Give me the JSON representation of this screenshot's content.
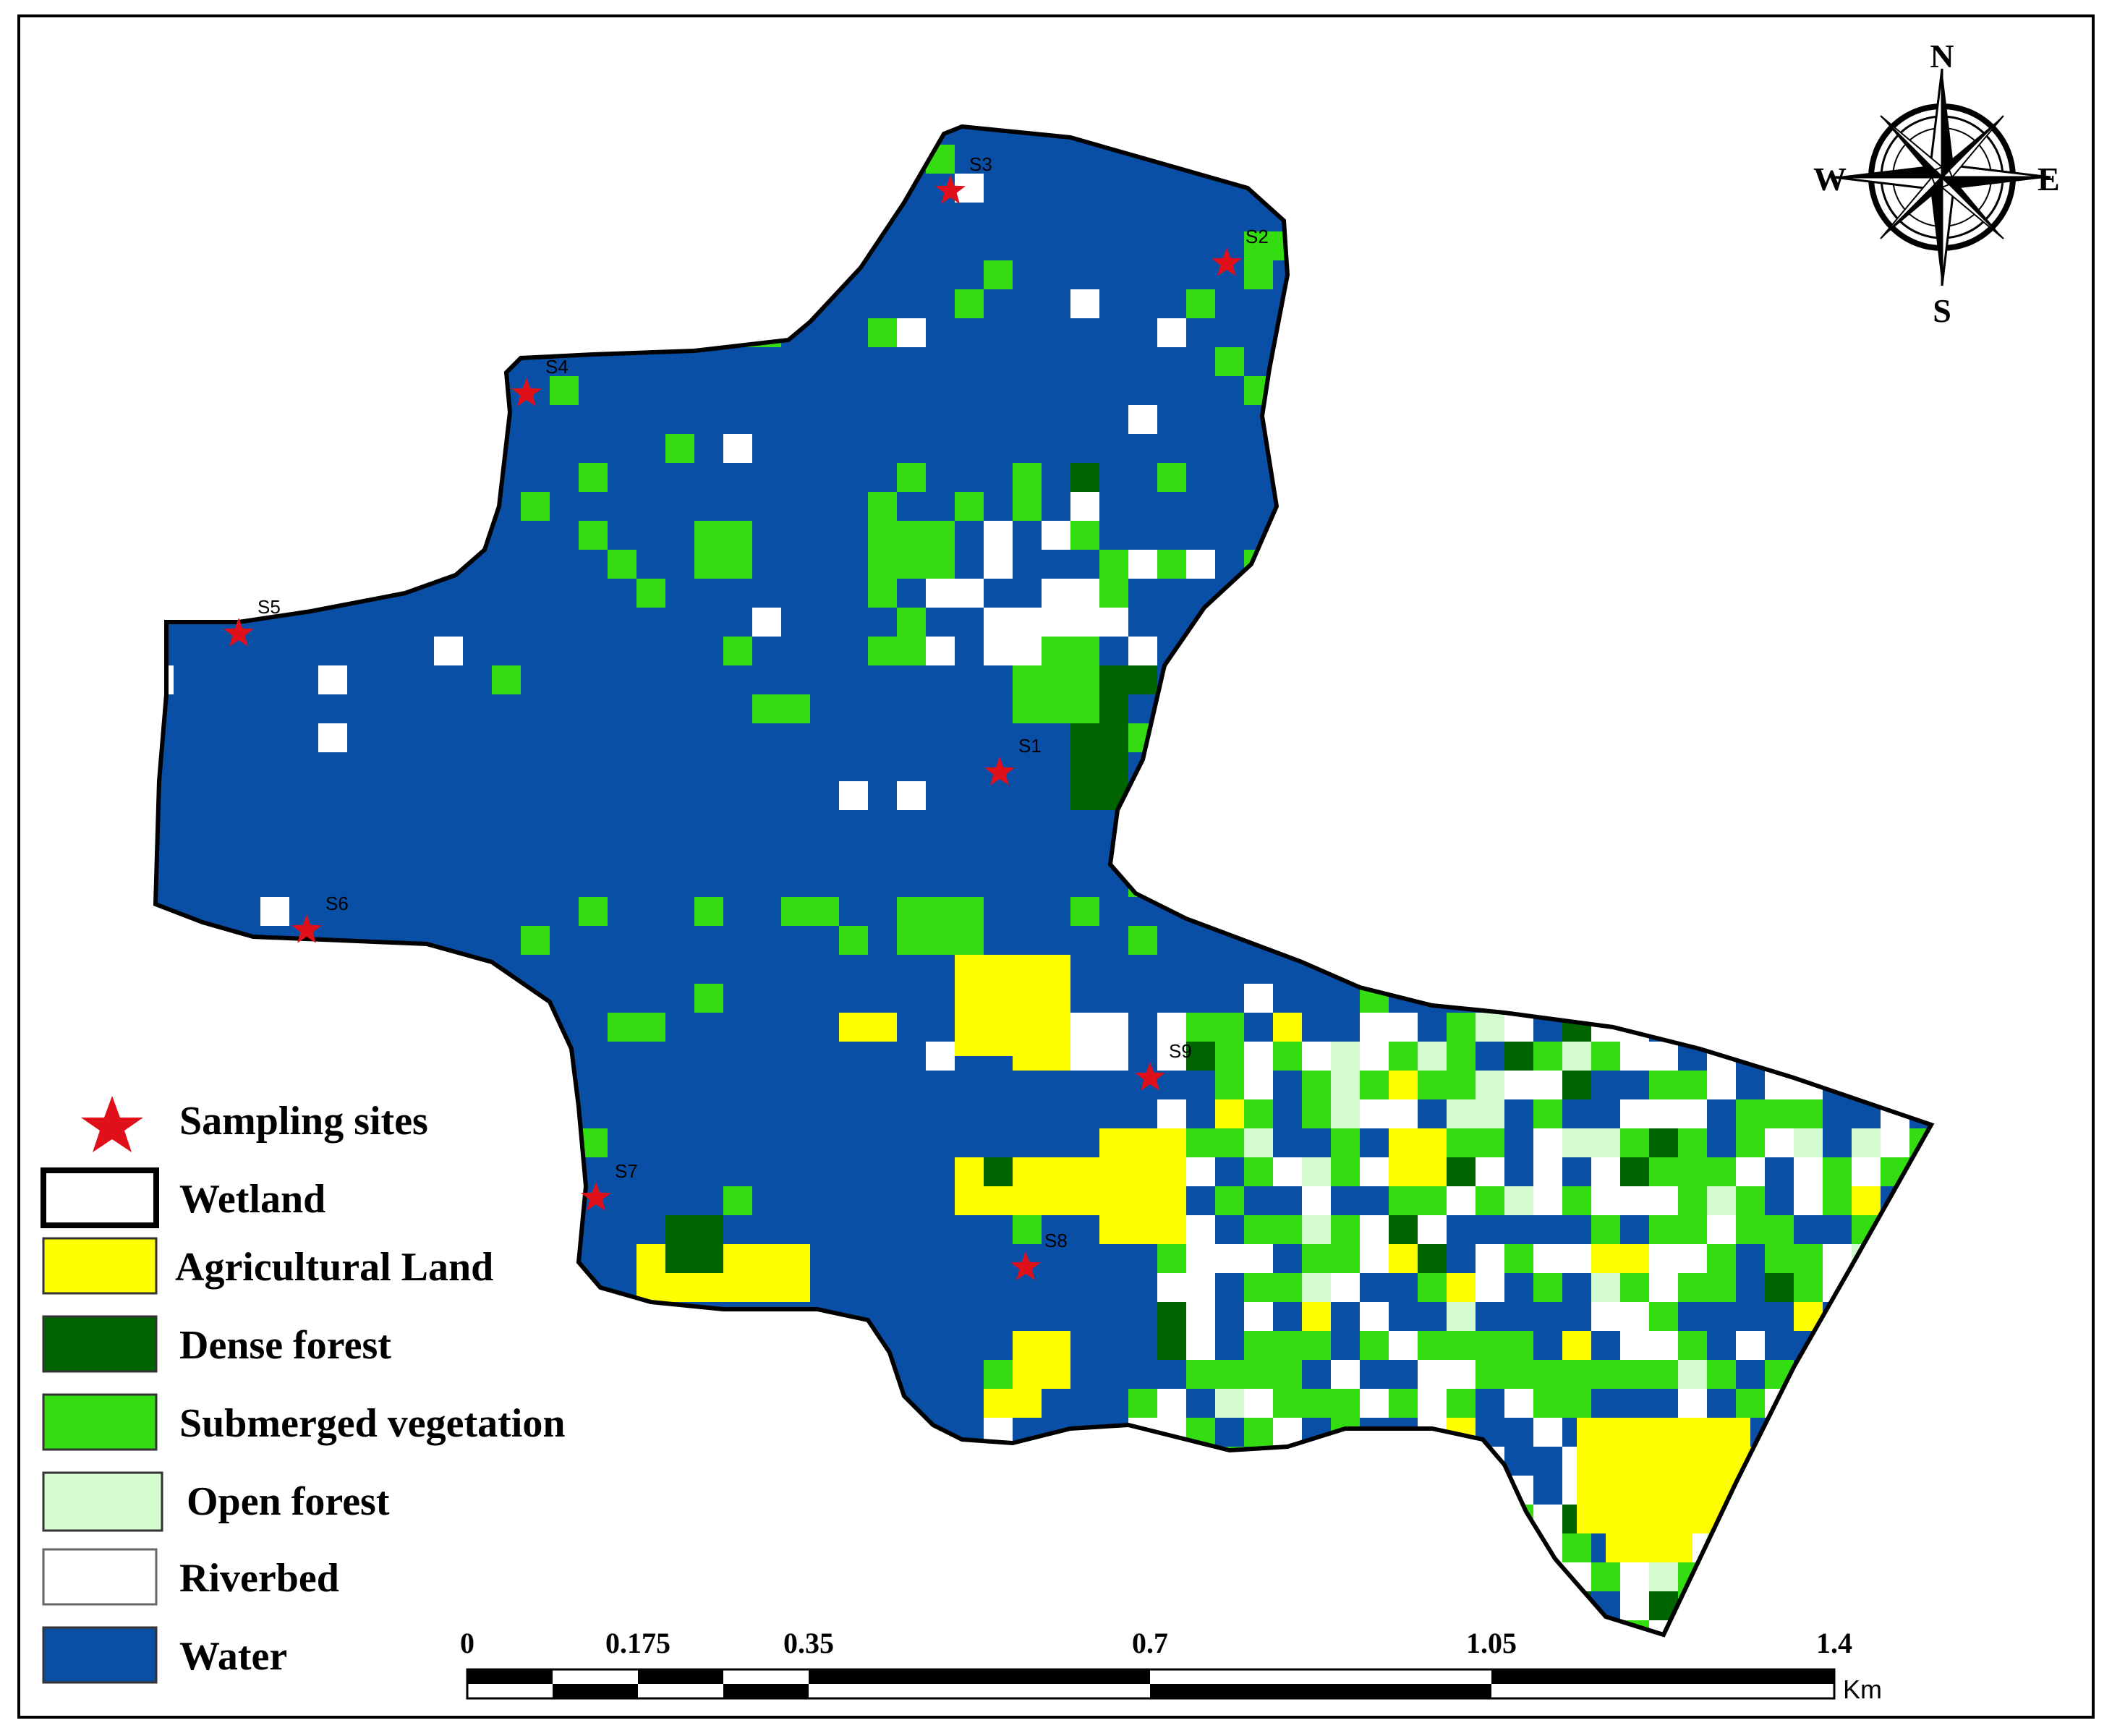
{
  "legend": {
    "items": [
      {
        "key": "sampling",
        "label": "Sampling sites"
      },
      {
        "key": "wetland",
        "label": "Wetland",
        "color": "#ffffff",
        "border": "#000000"
      },
      {
        "key": "agri",
        "label": "Agricultural Land",
        "color": "#ffff00"
      },
      {
        "key": "dense",
        "label": "Dense forest",
        "color": "#006400"
      },
      {
        "key": "submerged",
        "label": "Submerged vegetation",
        "color": "#33dd11"
      },
      {
        "key": "open",
        "label": "Open forest",
        "color": "#d4fbd0"
      },
      {
        "key": "riverbed",
        "label": "Riverbed",
        "color": "#ffffff"
      },
      {
        "key": "water",
        "label": "Water",
        "color": "#0a4fa6"
      }
    ]
  },
  "sites": [
    {
      "id": "S1",
      "label": "S1"
    },
    {
      "id": "S2",
      "label": "S2"
    },
    {
      "id": "S3",
      "label": "S3"
    },
    {
      "id": "S4",
      "label": "S4"
    },
    {
      "id": "S5",
      "label": "S5"
    },
    {
      "id": "S6",
      "label": "S6"
    },
    {
      "id": "S7",
      "label": "S7"
    },
    {
      "id": "S8",
      "label": "S8"
    },
    {
      "id": "S9",
      "label": "S9"
    }
  ],
  "scale": {
    "ticks": [
      "0",
      "0.175",
      "0.35",
      "0.7",
      "1.05",
      "1.4"
    ],
    "unit": "Km"
  },
  "compass": {
    "n": "N",
    "e": "E",
    "s": "S",
    "w": "W"
  },
  "colors": {
    "water": "#0a4fa6",
    "submerged": "#33dd11",
    "dense": "#006400",
    "agri": "#ffff00",
    "open": "#d4fbd0",
    "riverbed": "#ffffff",
    "site": "#e0101a"
  }
}
